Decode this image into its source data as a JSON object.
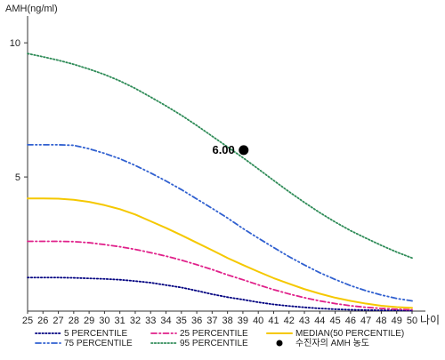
{
  "chart_data": {
    "type": "line",
    "ylabel": "AMH(ng/ml)",
    "xlabel": "나이",
    "x": [
      25,
      26,
      27,
      28,
      29,
      30,
      31,
      32,
      33,
      34,
      35,
      36,
      37,
      38,
      39,
      40,
      41,
      42,
      43,
      44,
      45,
      46,
      47,
      48,
      49,
      50
    ],
    "x_tick_labels": [
      "25",
      "26",
      "27",
      "28",
      "29",
      "30",
      "31",
      "32",
      "33",
      "34",
      "35",
      "36",
      "37",
      "38",
      "39",
      "40",
      "41",
      "42",
      "43",
      "44",
      "45",
      "46",
      "47",
      "48",
      "49",
      "50"
    ],
    "xlim": [
      25,
      50
    ],
    "ylim": [
      0,
      11
    ],
    "y_ticks": [
      5,
      10
    ],
    "y_tick_labels": [
      "5",
      "10"
    ],
    "grid": false,
    "series": [
      {
        "name": "5 PERCENTILE",
        "color": "#000080",
        "style": "dotted",
        "values": [
          1.25,
          1.25,
          1.25,
          1.24,
          1.22,
          1.2,
          1.17,
          1.12,
          1.06,
          0.97,
          0.88,
          0.76,
          0.63,
          0.52,
          0.43,
          0.33,
          0.25,
          0.19,
          0.14,
          0.1,
          0.07,
          0.05,
          0.04,
          0.03,
          0.03,
          0.02
        ]
      },
      {
        "name": "25 PERCENTILE",
        "color": "#e0208a",
        "style": "dashdot",
        "values": [
          2.6,
          2.6,
          2.6,
          2.59,
          2.55,
          2.48,
          2.4,
          2.3,
          2.18,
          2.05,
          1.9,
          1.73,
          1.55,
          1.35,
          1.17,
          0.98,
          0.8,
          0.64,
          0.5,
          0.38,
          0.28,
          0.2,
          0.14,
          0.1,
          0.07,
          0.05
        ]
      },
      {
        "name": "MEDIAN(50 PERCENTILE)",
        "color": "#f5c800",
        "style": "solid",
        "values": [
          4.2,
          4.2,
          4.19,
          4.15,
          4.07,
          3.95,
          3.8,
          3.6,
          3.35,
          3.1,
          2.83,
          2.55,
          2.27,
          1.98,
          1.72,
          1.47,
          1.23,
          1.02,
          0.82,
          0.65,
          0.5,
          0.38,
          0.28,
          0.2,
          0.15,
          0.12
        ]
      },
      {
        "name": "75 PERCENTILE",
        "color": "#3060d0",
        "style": "dashdotdot",
        "values": [
          6.2,
          6.2,
          6.2,
          6.18,
          6.05,
          5.88,
          5.68,
          5.43,
          5.15,
          4.85,
          4.53,
          4.18,
          3.83,
          3.47,
          3.08,
          2.72,
          2.37,
          2.03,
          1.72,
          1.43,
          1.18,
          0.95,
          0.76,
          0.6,
          0.47,
          0.38
        ]
      },
      {
        "name": "95 PERCENTILE",
        "color": "#2e8b57",
        "style": "dotted",
        "values": [
          9.6,
          9.48,
          9.35,
          9.2,
          9.02,
          8.82,
          8.58,
          8.3,
          7.98,
          7.65,
          7.3,
          6.92,
          6.52,
          6.12,
          5.72,
          5.3,
          4.87,
          4.45,
          4.05,
          3.67,
          3.32,
          3.0,
          2.72,
          2.45,
          2.2,
          1.98
        ]
      }
    ],
    "marker": {
      "name": "수진자의 AMH 농도",
      "x": 39.05,
      "y": 6.0,
      "label": "6.00",
      "color": "#000000"
    },
    "legend": {
      "placement": "bottom",
      "entries": [
        {
          "label": "5 PERCENTILE",
          "series": 0
        },
        {
          "label": "25 PERCENTILE",
          "series": 1
        },
        {
          "label": "MEDIAN(50 PERCENTILE)",
          "series": 2
        },
        {
          "label": "75 PERCENTILE",
          "series": 3
        },
        {
          "label": "95 PERCENTILE",
          "series": 4
        },
        {
          "label": "수진자의 AMH 농도",
          "marker": true
        }
      ]
    }
  }
}
